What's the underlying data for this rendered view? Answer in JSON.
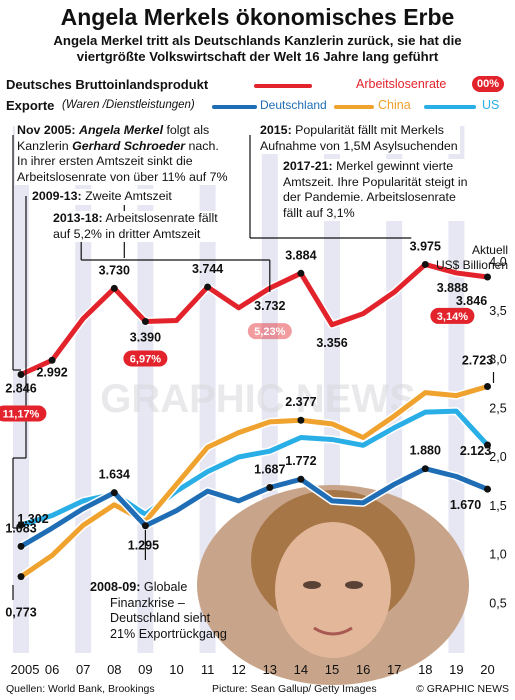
{
  "title": "Angela Merkels ökonomisches Erbe",
  "subtitle_1": "Angela Merkel tritt als Deutschlands Kanzlerin zurück, sie hat die",
  "subtitle_2": "viertgrößte Volkswirtschaft der Welt 16 Jahre lang geführt",
  "legend": {
    "gdp": "Deutsches Bruttoinlandsprodukt",
    "unemployment": "Arbeitslosenrate",
    "unemployment_badge": "00%",
    "exports": "Exporte",
    "exports_note": "(Waren /Dienstleistungen)",
    "germany": "Deutschland",
    "china": "China",
    "us": "US"
  },
  "axis_unit_1": "Aktuell",
  "axis_unit_2": "US$ Billionen",
  "notes": {
    "n2005_year": "Nov 2005:",
    "n2005_name": "Angela Merkel",
    "n2005_rest": "folgt als",
    "n2005_l2a": "Kanzlerin",
    "n2005_l2b": "Gerhard Schroeder",
    "n2005_l2c": "nach.",
    "n2005_l3": "In ihrer ersten Amtszeit sinkt die",
    "n2005_l4": "Arbeitslosenrate von über 11% auf 7%",
    "n2009_year": "2009-13:",
    "n2009_text": "Zweite Amtszeit",
    "n2013_year": "2013-18:",
    "n2013_text": "Arbeitslosenrate fällt",
    "n2013_l2": "auf 5,2% in dritter Amtszeit",
    "n2015_year": "2015:",
    "n2015_text": "Popularität fällt mit Merkels",
    "n2015_l2": "Aufnahme von 1,5M Asylsuchenden",
    "n2017_year": "2017-21:",
    "n2017_text": "Merkel gewinnt vierte",
    "n2017_l2": "Amtszeit. Ihre Popularität steigt in",
    "n2017_l3": "der Pandemie. Arbeitslosenrate",
    "n2017_l4": "fällt auf 3,1%",
    "n2008_year": "2008-09:",
    "n2008_text": "Globale",
    "n2008_l2": "Finanzkrise –",
    "n2008_l3": "Deutschland sieht",
    "n2008_l4": "21% Exportrückgang"
  },
  "footer": {
    "sources": "Quellen: World Bank, Brookings",
    "picture": "Picture: Sean Gallup/ Getty Images",
    "credit": "© GRAPHIC NEWS"
  },
  "watermark": "GRAPHIC NEWS",
  "colors": {
    "gdp": "#e3232c",
    "germany": "#1f6db5",
    "china": "#f0a22e",
    "us": "#29aee6",
    "band": "#e6e7f2"
  },
  "chart_data": {
    "type": "line",
    "x": [
      "2005",
      "06",
      "07",
      "08",
      "09",
      "10",
      "11",
      "12",
      "13",
      "14",
      "15",
      "16",
      "17",
      "18",
      "19",
      "20"
    ],
    "ylim": [
      0,
      4.0
    ],
    "yticks": [
      "0,5",
      "1,0",
      "1,5",
      "2,0",
      "2,5",
      "3,0",
      "3,5",
      "4,0"
    ],
    "grid": false,
    "series": [
      {
        "name": "Deutsches Bruttoinlandsprodukt",
        "color": "#e3232c",
        "values": [
          2.846,
          2.992,
          3.42,
          3.73,
          3.39,
          3.4,
          3.744,
          3.53,
          3.732,
          3.884,
          3.356,
          3.47,
          3.69,
          3.975,
          3.888,
          3.846
        ]
      },
      {
        "name": "Deutschland",
        "color": "#1f6db5",
        "values": [
          1.083,
          1.27,
          1.47,
          1.634,
          1.295,
          1.45,
          1.65,
          1.55,
          1.687,
          1.772,
          1.55,
          1.53,
          1.72,
          1.88,
          1.8,
          1.67
        ]
      },
      {
        "name": "China",
        "color": "#f0a22e",
        "values": [
          0.773,
          0.99,
          1.3,
          1.51,
          1.34,
          1.72,
          2.1,
          2.25,
          2.36,
          2.377,
          2.34,
          2.2,
          2.42,
          2.66,
          2.63,
          2.723
        ]
      },
      {
        "name": "US",
        "color": "#29aee6",
        "values": [
          1.302,
          1.4,
          1.55,
          1.62,
          1.41,
          1.65,
          1.85,
          2.0,
          2.06,
          2.2,
          2.18,
          2.12,
          2.3,
          2.46,
          2.47,
          2.123
        ]
      }
    ],
    "value_labels": [
      {
        "text": "2.846",
        "series": 0,
        "i": 0
      },
      {
        "text": "2.992",
        "series": 0,
        "i": 1
      },
      {
        "text": "3.730",
        "series": 0,
        "i": 3
      },
      {
        "text": "3.390",
        "series": 0,
        "i": 4
      },
      {
        "text": "3.744",
        "series": 0,
        "i": 6
      },
      {
        "text": "3.732",
        "series": 0,
        "i": 8
      },
      {
        "text": "3.884",
        "series": 0,
        "i": 9
      },
      {
        "text": "3.356",
        "series": 0,
        "i": 10
      },
      {
        "text": "3.975",
        "series": 0,
        "i": 13
      },
      {
        "text": "3.888",
        "series": 0,
        "i": 14
      },
      {
        "text": "3.846",
        "series": 0,
        "i": 15
      },
      {
        "text": "1.083",
        "series": 1,
        "i": 0
      },
      {
        "text": "1.302",
        "series": 3,
        "i": 0
      },
      {
        "text": "0,773",
        "series": 2,
        "i": 0
      },
      {
        "text": "1.634",
        "series": 1,
        "i": 3
      },
      {
        "text": "1.295",
        "series": 1,
        "i": 4
      },
      {
        "text": "1.687",
        "series": 1,
        "i": 8
      },
      {
        "text": "1.772",
        "series": 1,
        "i": 9
      },
      {
        "text": "2.377",
        "series": 2,
        "i": 9
      },
      {
        "text": "1.880",
        "series": 1,
        "i": 13
      },
      {
        "text": "1.670",
        "series": 1,
        "i": 15
      },
      {
        "text": "2.723",
        "series": 2,
        "i": 15
      },
      {
        "text": "2.123",
        "series": 3,
        "i": 15
      }
    ],
    "unemployment_rates": [
      {
        "text": "11,17%",
        "i": 0
      },
      {
        "text": "6,97%",
        "i": 4
      },
      {
        "text": "5,23%",
        "i": 8
      },
      {
        "text": "3,14%",
        "i": 14
      }
    ]
  }
}
